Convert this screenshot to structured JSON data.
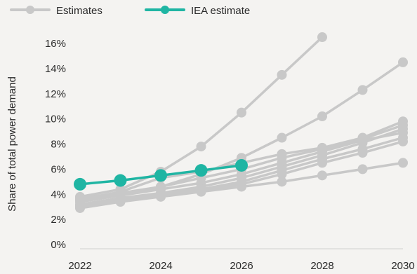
{
  "chart_data": {
    "type": "line",
    "title": "",
    "xlabel": "",
    "ylabel": "Share of total power demand",
    "xlim": [
      2022,
      2030
    ],
    "ylim": [
      0,
      16
    ],
    "x_ticks": [
      "2022",
      "2024",
      "2026",
      "2028",
      "2030"
    ],
    "y_ticks": [
      "0%",
      "2%",
      "4%",
      "6%",
      "8%",
      "10%",
      "12%",
      "14%",
      "16%"
    ],
    "grid": false,
    "legend_position": "top-left",
    "legend": [
      {
        "label": "Estimates",
        "color": "#c8c8c8"
      },
      {
        "label": "IEA estimate",
        "color": "#1fb5a3"
      }
    ],
    "series": [
      {
        "group": "Estimates",
        "x": [
          2022,
          2023,
          2024,
          2025,
          2026,
          2027,
          2028
        ],
        "y": [
          3.8,
          4.4,
          5.8,
          7.8,
          10.5,
          13.5,
          16.5
        ]
      },
      {
        "group": "Estimates",
        "x": [
          2022,
          2023,
          2024,
          2025,
          2026,
          2027,
          2028,
          2029,
          2030
        ],
        "y": [
          3.7,
          4.1,
          4.6,
          5.6,
          6.9,
          8.5,
          10.2,
          12.3,
          14.5
        ]
      },
      {
        "group": "Estimates",
        "x": [
          2022,
          2023,
          2024,
          2025,
          2026,
          2027,
          2028,
          2029,
          2030
        ],
        "y": [
          3.6,
          4.2,
          5.3,
          5.8,
          6.5,
          7.2,
          7.7,
          8.5,
          9.8
        ]
      },
      {
        "group": "Estimates",
        "x": [
          2022,
          2023,
          2024,
          2025,
          2026,
          2027,
          2028,
          2029,
          2030
        ],
        "y": [
          3.5,
          4.0,
          4.6,
          5.3,
          6.0,
          6.9,
          7.6,
          8.4,
          9.5
        ]
      },
      {
        "group": "Estimates",
        "x": [
          2022,
          2023,
          2024,
          2025,
          2026,
          2027,
          2028,
          2029,
          2030
        ],
        "y": [
          3.4,
          3.9,
          4.4,
          4.9,
          5.6,
          6.5,
          7.4,
          8.3,
          8.9
        ]
      },
      {
        "group": "Estimates",
        "x": [
          2022,
          2023,
          2024,
          2025,
          2026,
          2027,
          2028,
          2029,
          2030
        ],
        "y": [
          3.2,
          3.7,
          4.1,
          4.6,
          5.3,
          6.2,
          7.1,
          8.1,
          9.2
        ]
      },
      {
        "group": "Estimates",
        "x": [
          2022,
          2023,
          2024,
          2025,
          2026,
          2027,
          2028,
          2029,
          2030
        ],
        "y": [
          3.1,
          3.6,
          4.0,
          4.4,
          5.0,
          5.9,
          6.8,
          7.6,
          8.5
        ]
      },
      {
        "group": "Estimates",
        "x": [
          2022,
          2023,
          2024,
          2025,
          2026,
          2027,
          2028,
          2029,
          2030
        ],
        "y": [
          3.0,
          3.5,
          3.9,
          4.3,
          4.8,
          5.6,
          6.5,
          7.3,
          8.2
        ]
      },
      {
        "group": "Estimates",
        "x": [
          2022,
          2023,
          2024,
          2025,
          2026,
          2027,
          2028,
          2029,
          2030
        ],
        "y": [
          2.9,
          3.4,
          3.8,
          4.2,
          4.6,
          5.0,
          5.5,
          6.0,
          6.5
        ]
      },
      {
        "group": "IEA estimate",
        "x": [
          2022,
          2023,
          2024,
          2025,
          2026
        ],
        "y": [
          4.8,
          5.1,
          5.5,
          5.9,
          6.3
        ]
      }
    ]
  }
}
